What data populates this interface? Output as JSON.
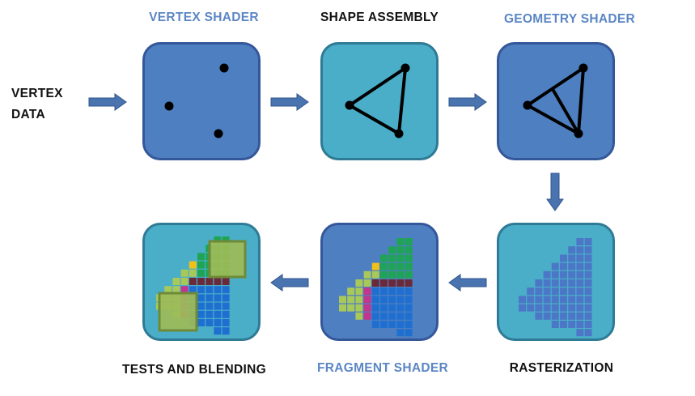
{
  "input_label": {
    "line1": "VERTEX",
    "line2": "DATA"
  },
  "stages": [
    {
      "id": "vertex-shader",
      "label": "VERTEX SHADER"
    },
    {
      "id": "shape-assembly",
      "label": "SHAPE ASSEMBLY"
    },
    {
      "id": "geometry-shader",
      "label": "GEOMETRY SHADER"
    },
    {
      "id": "rasterization",
      "label": "RASTERIZATION"
    },
    {
      "id": "fragment-shader",
      "label": "FRAGMENT SHADER"
    },
    {
      "id": "tests-and-blending",
      "label": "TESTS AND BLENDING"
    }
  ],
  "colors": {
    "label_blue": "#5b86c4",
    "label_black": "#111111",
    "box_dark": "#4e7fc0",
    "box_light": "#4aaec8",
    "arrow": "#4a74b0"
  }
}
